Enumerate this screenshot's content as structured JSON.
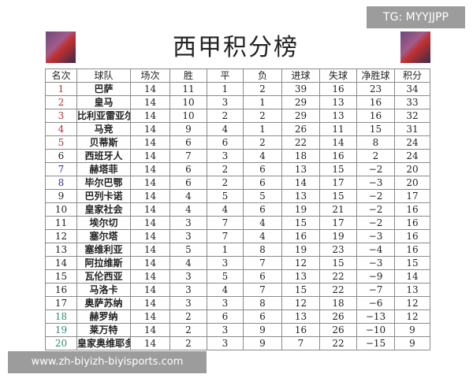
{
  "title": "西甲积分榜",
  "columns": [
    "名次",
    "球队",
    "场次",
    "胜",
    "平",
    "负",
    "进球",
    "失球",
    "净胜球",
    "积分"
  ],
  "rows": [
    [
      "1",
      "巴萨",
      "14",
      "11",
      "1",
      "2",
      "39",
      "16",
      "23",
      "34"
    ],
    [
      "2",
      "皇马",
      "14",
      "10",
      "3",
      "1",
      "29",
      "13",
      "16",
      "33"
    ],
    [
      "3",
      "比利亚雷亚尔",
      "14",
      "10",
      "2",
      "2",
      "29",
      "13",
      "16",
      "32"
    ],
    [
      "4",
      "马竞",
      "14",
      "9",
      "4",
      "1",
      "26",
      "11",
      "15",
      "31"
    ],
    [
      "5",
      "贝蒂斯",
      "14",
      "6",
      "6",
      "2",
      "22",
      "14",
      "8",
      "24"
    ],
    [
      "6",
      "西班牙人",
      "14",
      "7",
      "3",
      "4",
      "18",
      "16",
      "2",
      "24"
    ],
    [
      "7",
      "赫塔菲",
      "14",
      "6",
      "2",
      "6",
      "13",
      "15",
      "−2",
      "20"
    ],
    [
      "8",
      "毕尔巴鄂",
      "14",
      "6",
      "2",
      "6",
      "14",
      "17",
      "−3",
      "20"
    ],
    [
      "9",
      "巴列卡诺",
      "14",
      "4",
      "5",
      "5",
      "13",
      "15",
      "−2",
      "17"
    ],
    [
      "10",
      "皇家社会",
      "14",
      "4",
      "4",
      "6",
      "19",
      "21",
      "−2",
      "16"
    ],
    [
      "11",
      "埃尔切",
      "14",
      "3",
      "7",
      "4",
      "15",
      "17",
      "−2",
      "16"
    ],
    [
      "12",
      "塞尔塔",
      "14",
      "3",
      "7",
      "4",
      "16",
      "19",
      "−3",
      "16"
    ],
    [
      "13",
      "塞维利亚",
      "14",
      "5",
      "1",
      "8",
      "19",
      "23",
      "−4",
      "16"
    ],
    [
      "14",
      "阿拉维斯",
      "14",
      "4",
      "3",
      "7",
      "12",
      "15",
      "−3",
      "15"
    ],
    [
      "15",
      "瓦伦西亚",
      "14",
      "3",
      "5",
      "6",
      "13",
      "22",
      "−9",
      "14"
    ],
    [
      "16",
      "马洛卡",
      "14",
      "3",
      "4",
      "7",
      "15",
      "22",
      "−7",
      "13"
    ],
    [
      "17",
      "奥萨苏纳",
      "14",
      "3",
      "3",
      "8",
      "12",
      "18",
      "−6",
      "12"
    ],
    [
      "18",
      "赫罗纳",
      "14",
      "2",
      "6",
      "6",
      "13",
      "26",
      "−13",
      "12"
    ],
    [
      "19",
      "莱万特",
      "14",
      "2",
      "3",
      "9",
      "16",
      "26",
      "−10",
      "9"
    ],
    [
      "20",
      "皇家奥维耶多",
      "14",
      "2",
      "3",
      "9",
      "7",
      "22",
      "−15",
      "9"
    ]
  ],
  "rank_colors": {
    "top": "#b03030",
    "mid": "#303090",
    "relegation": "#2a9060"
  },
  "overlay_tg": "TG: MYYJJPP",
  "overlay_url": "www.zh-biyizh-biyisports.com"
}
